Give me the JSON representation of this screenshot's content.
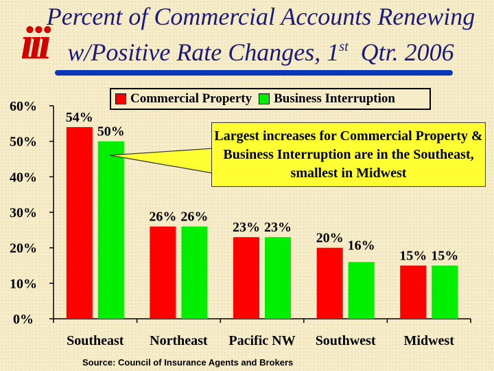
{
  "logo": {
    "text": "iii"
  },
  "title": {
    "line1": "Percent of Commercial Accounts Renewing",
    "line2_pre": "w/Positive Rate Changes, 1",
    "line2_sup": "st",
    "line2_post": "  Qtr. 2006"
  },
  "callout": {
    "text": "Largest increases for Commercial Property & Business Interruption are in the Southeast, smallest in Midwest"
  },
  "source": "Source: Council of Insurance Agents and Brokers",
  "colors": {
    "property": "#ff0000",
    "interruption": "#00ee00",
    "callout": "#ffff33",
    "title": "#1a1a7a",
    "rule": "#0a37b8"
  },
  "chart_data": {
    "type": "bar",
    "categories": [
      "Southeast",
      "Northeast",
      "Pacific NW",
      "Southwest",
      "Midwest"
    ],
    "series": [
      {
        "name": "Commercial Property",
        "values": [
          54,
          26,
          23,
          20,
          15
        ],
        "labels": [
          "54%",
          "26%",
          "23%",
          "20%",
          "15%"
        ]
      },
      {
        "name": "Business Interruption",
        "values": [
          50,
          26,
          23,
          16,
          15
        ],
        "labels": [
          "50%",
          "26%",
          "23%",
          "16%",
          "15%"
        ]
      }
    ],
    "ylim": [
      0,
      60
    ],
    "yticks": [
      0,
      10,
      20,
      30,
      40,
      50,
      60
    ],
    "ytick_labels": [
      "0%",
      "10%",
      "20%",
      "30%",
      "40%",
      "50%",
      "60%"
    ],
    "grid": false,
    "legend": "top-right"
  }
}
